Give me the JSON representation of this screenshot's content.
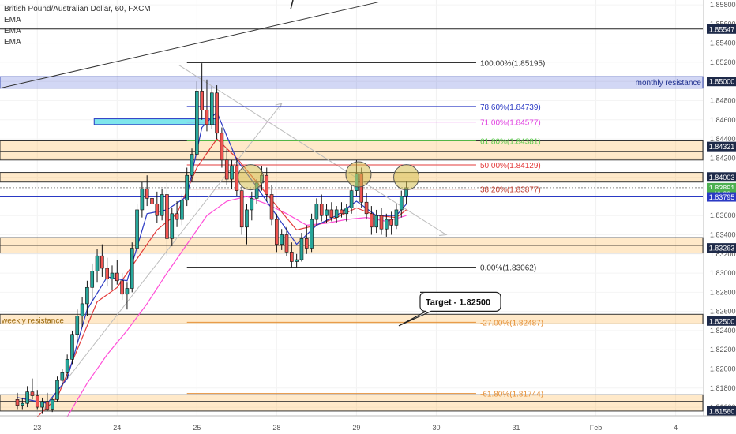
{
  "chart_data": {
    "type": "candlestick",
    "title": "British Pound/Australian Dollar, 60, FXCM",
    "indicators": [
      "EMA",
      "EMA",
      "EMA"
    ],
    "y_range": [
      1.8151,
      1.8585
    ],
    "price_ticks": [
      "1.85800",
      "1.85600",
      "1.85400",
      "1.85200",
      "1.85000",
      "1.84800",
      "1.84600",
      "1.84400",
      "1.84200",
      "1.84000",
      "1.83800",
      "1.83600",
      "1.83400",
      "1.83200",
      "1.83000",
      "1.82800",
      "1.82600",
      "1.82400",
      "1.82200",
      "1.82000",
      "1.81800",
      "1.81600"
    ],
    "x_labels": [
      {
        "label": "23",
        "x": 0.2
      },
      {
        "label": "24",
        "x": 1.0
      },
      {
        "label": "25",
        "x": 1.8
      },
      {
        "label": "28",
        "x": 2.6
      },
      {
        "label": "29",
        "x": 3.4
      },
      {
        "label": "30",
        "x": 4.2
      },
      {
        "label": "31",
        "x": 5.0
      },
      {
        "label": "Feb",
        "x": 5.8
      },
      {
        "label": "4",
        "x": 6.6
      }
    ],
    "price_tags": [
      {
        "label": "1.85547",
        "value": 1.85547,
        "style": "dark"
      },
      {
        "label": "1.85000",
        "value": 1.85,
        "style": "dark"
      },
      {
        "label": "1.84321",
        "value": 1.84321,
        "style": "dark"
      },
      {
        "label": "1.84003",
        "value": 1.84003,
        "style": "dark"
      },
      {
        "label": "1.83891",
        "value": 1.83891,
        "style": "green"
      },
      {
        "label": "46:39",
        "value": 1.8383,
        "style": "green"
      },
      {
        "label": "1.83795",
        "value": 1.83795,
        "style": "blue"
      },
      {
        "label": "1.83263",
        "value": 1.83263,
        "style": "dark"
      },
      {
        "label": "1.82500",
        "value": 1.825,
        "style": "dark"
      },
      {
        "label": "1.81560",
        "value": 1.8156,
        "style": "dark"
      }
    ],
    "zones": [
      {
        "from": 1.8493,
        "to": 1.8505,
        "label": "monthly resistance",
        "style": "blue"
      },
      {
        "from": 1.8427,
        "to": 1.8438,
        "label": "",
        "style": "orange"
      },
      {
        "from": 1.8418,
        "to": 1.8427,
        "label": "",
        "style": "orange"
      },
      {
        "from": 1.8395,
        "to": 1.8405,
        "label": "",
        "style": "orange"
      },
      {
        "from": 1.8329,
        "to": 1.8337,
        "label": "",
        "style": "orange"
      },
      {
        "from": 1.8321,
        "to": 1.8329,
        "label": "",
        "style": "orange"
      },
      {
        "from": 1.8247,
        "to": 1.8257,
        "label": "weekly resistance",
        "style": "orange"
      },
      {
        "from": 1.8166,
        "to": 1.8173,
        "label": "",
        "style": "orange"
      },
      {
        "from": 1.8156,
        "to": 1.8166,
        "label": "",
        "style": "orange"
      }
    ],
    "fib_levels": [
      {
        "label": "100.00%(1.85195)",
        "value": 1.85195,
        "color": "#333333"
      },
      {
        "label": "78.60%(1.84739)",
        "value": 1.84739,
        "color": "#2a39c4"
      },
      {
        "label": "71.00%(1.84577)",
        "value": 1.84577,
        "color": "#e040e0"
      },
      {
        "label": "61.80%(1.84381)",
        "value": 1.84381,
        "color": "#5ac94a"
      },
      {
        "label": "50.00%(1.84129)",
        "value": 1.84129,
        "color": "#e33b3b"
      },
      {
        "label": "38.20%(1.83877)",
        "value": 1.83877,
        "color": "#c0392b"
      },
      {
        "label": "0.00%(1.83062)",
        "value": 1.83062,
        "color": "#333333"
      },
      {
        "label": "-27.00%(1.82487)",
        "value": 1.82487,
        "color": "#e69138"
      },
      {
        "label": "-61.80%(1.81744)",
        "value": 1.81744,
        "color": "#e69138"
      }
    ],
    "annotation": {
      "label": "Target - 1.82500"
    },
    "colors": {
      "up": "#26a69a",
      "down": "#ef5350",
      "ema_fast": "#2a39c4",
      "ema_mid": "#e33b3b",
      "ema_slow": "#ff4fd8"
    },
    "candles": [
      {
        "t": 0.0,
        "o": 1.8168,
        "h": 1.8175,
        "l": 1.8158,
        "c": 1.8162
      },
      {
        "t": 0.05,
        "o": 1.8162,
        "h": 1.817,
        "l": 1.8158,
        "c": 1.8164
      },
      {
        "t": 0.1,
        "o": 1.8164,
        "h": 1.8182,
        "l": 1.816,
        "c": 1.8176
      },
      {
        "t": 0.15,
        "o": 1.8176,
        "h": 1.819,
        "l": 1.8168,
        "c": 1.8172
      },
      {
        "t": 0.2,
        "o": 1.8172,
        "h": 1.8178,
        "l": 1.8158,
        "c": 1.816
      },
      {
        "t": 0.25,
        "o": 1.816,
        "h": 1.817,
        "l": 1.8153,
        "c": 1.8166
      },
      {
        "t": 0.3,
        "o": 1.8166,
        "h": 1.8175,
        "l": 1.8156,
        "c": 1.8158
      },
      {
        "t": 0.35,
        "o": 1.8158,
        "h": 1.817,
        "l": 1.8155,
        "c": 1.8168
      },
      {
        "t": 0.4,
        "o": 1.8168,
        "h": 1.8192,
        "l": 1.8166,
        "c": 1.8188
      },
      {
        "t": 0.45,
        "o": 1.8188,
        "h": 1.82,
        "l": 1.8182,
        "c": 1.8196
      },
      {
        "t": 0.5,
        "o": 1.8196,
        "h": 1.8215,
        "l": 1.819,
        "c": 1.821
      },
      {
        "t": 0.55,
        "o": 1.821,
        "h": 1.824,
        "l": 1.8205,
        "c": 1.8236
      },
      {
        "t": 0.6,
        "o": 1.8236,
        "h": 1.8262,
        "l": 1.8228,
        "c": 1.8255
      },
      {
        "t": 0.65,
        "o": 1.8255,
        "h": 1.8275,
        "l": 1.8244,
        "c": 1.8268
      },
      {
        "t": 0.7,
        "o": 1.8268,
        "h": 1.8292,
        "l": 1.8255,
        "c": 1.8285
      },
      {
        "t": 0.75,
        "o": 1.8285,
        "h": 1.831,
        "l": 1.8272,
        "c": 1.8302
      },
      {
        "t": 0.8,
        "o": 1.8302,
        "h": 1.8325,
        "l": 1.829,
        "c": 1.8318
      },
      {
        "t": 0.85,
        "o": 1.8318,
        "h": 1.833,
        "l": 1.8296,
        "c": 1.8305
      },
      {
        "t": 0.9,
        "o": 1.8305,
        "h": 1.8316,
        "l": 1.8286,
        "c": 1.8294
      },
      {
        "t": 0.95,
        "o": 1.8294,
        "h": 1.8308,
        "l": 1.8282,
        "c": 1.83
      },
      {
        "t": 1.0,
        "o": 1.83,
        "h": 1.8314,
        "l": 1.8288,
        "c": 1.8292
      },
      {
        "t": 1.05,
        "o": 1.8292,
        "h": 1.83,
        "l": 1.8272,
        "c": 1.8278
      },
      {
        "t": 1.1,
        "o": 1.8278,
        "h": 1.829,
        "l": 1.8262,
        "c": 1.8284
      },
      {
        "t": 1.15,
        "o": 1.8284,
        "h": 1.8332,
        "l": 1.828,
        "c": 1.8326
      },
      {
        "t": 1.2,
        "o": 1.8326,
        "h": 1.8372,
        "l": 1.832,
        "c": 1.8366
      },
      {
        "t": 1.25,
        "o": 1.8366,
        "h": 1.8395,
        "l": 1.8358,
        "c": 1.8388
      },
      {
        "t": 1.3,
        "o": 1.8388,
        "h": 1.8402,
        "l": 1.837,
        "c": 1.8378
      },
      {
        "t": 1.35,
        "o": 1.8378,
        "h": 1.84,
        "l": 1.8365,
        "c": 1.8372
      },
      {
        "t": 1.4,
        "o": 1.8372,
        "h": 1.8385,
        "l": 1.8352,
        "c": 1.836
      },
      {
        "t": 1.45,
        "o": 1.836,
        "h": 1.8388,
        "l": 1.8355,
        "c": 1.8382
      },
      {
        "t": 1.5,
        "o": 1.8382,
        "h": 1.8394,
        "l": 1.8318,
        "c": 1.8336
      },
      {
        "t": 1.55,
        "o": 1.8336,
        "h": 1.8368,
        "l": 1.8328,
        "c": 1.8362
      },
      {
        "t": 1.6,
        "o": 1.8362,
        "h": 1.8375,
        "l": 1.8348,
        "c": 1.8356
      },
      {
        "t": 1.65,
        "o": 1.8356,
        "h": 1.8382,
        "l": 1.835,
        "c": 1.8376
      },
      {
        "t": 1.7,
        "o": 1.8376,
        "h": 1.841,
        "l": 1.837,
        "c": 1.8402
      },
      {
        "t": 1.75,
        "o": 1.8402,
        "h": 1.843,
        "l": 1.8395,
        "c": 1.8424
      },
      {
        "t": 1.8,
        "o": 1.8424,
        "h": 1.85,
        "l": 1.8418,
        "c": 1.849
      },
      {
        "t": 1.85,
        "o": 1.849,
        "h": 1.8519,
        "l": 1.846,
        "c": 1.847
      },
      {
        "t": 1.9,
        "o": 1.847,
        "h": 1.8502,
        "l": 1.8448,
        "c": 1.8455
      },
      {
        "t": 1.95,
        "o": 1.8455,
        "h": 1.8495,
        "l": 1.845,
        "c": 1.8488
      },
      {
        "t": 2.0,
        "o": 1.8488,
        "h": 1.8496,
        "l": 1.844,
        "c": 1.8446
      },
      {
        "t": 2.05,
        "o": 1.8446,
        "h": 1.8452,
        "l": 1.841,
        "c": 1.8418
      },
      {
        "t": 2.1,
        "o": 1.8418,
        "h": 1.843,
        "l": 1.8392,
        "c": 1.8398
      },
      {
        "t": 2.15,
        "o": 1.8398,
        "h": 1.8418,
        "l": 1.8388,
        "c": 1.8412
      },
      {
        "t": 2.2,
        "o": 1.8412,
        "h": 1.842,
        "l": 1.838,
        "c": 1.8386
      },
      {
        "t": 2.25,
        "o": 1.8386,
        "h": 1.8392,
        "l": 1.834,
        "c": 1.8348
      },
      {
        "t": 2.3,
        "o": 1.8348,
        "h": 1.8372,
        "l": 1.833,
        "c": 1.8366
      },
      {
        "t": 2.35,
        "o": 1.8366,
        "h": 1.8385,
        "l": 1.8355,
        "c": 1.8378
      },
      {
        "t": 2.4,
        "o": 1.8378,
        "h": 1.8398,
        "l": 1.8372,
        "c": 1.8394
      },
      {
        "t": 2.45,
        "o": 1.8394,
        "h": 1.8412,
        "l": 1.8386,
        "c": 1.8402
      },
      {
        "t": 2.5,
        "o": 1.8402,
        "h": 1.841,
        "l": 1.8375,
        "c": 1.8382
      },
      {
        "t": 2.55,
        "o": 1.8382,
        "h": 1.8392,
        "l": 1.835,
        "c": 1.8356
      },
      {
        "t": 2.6,
        "o": 1.8356,
        "h": 1.8362,
        "l": 1.8322,
        "c": 1.833
      },
      {
        "t": 2.65,
        "o": 1.833,
        "h": 1.8346,
        "l": 1.8324,
        "c": 1.834
      },
      {
        "t": 2.7,
        "o": 1.834,
        "h": 1.8348,
        "l": 1.8318,
        "c": 1.8322
      },
      {
        "t": 2.75,
        "o": 1.8322,
        "h": 1.8332,
        "l": 1.8306,
        "c": 1.8312
      },
      {
        "t": 2.8,
        "o": 1.8312,
        "h": 1.832,
        "l": 1.8306,
        "c": 1.8314
      },
      {
        "t": 2.85,
        "o": 1.8314,
        "h": 1.8342,
        "l": 1.8312,
        "c": 1.8336
      },
      {
        "t": 2.9,
        "o": 1.8336,
        "h": 1.835,
        "l": 1.832,
        "c": 1.8326
      },
      {
        "t": 2.95,
        "o": 1.8326,
        "h": 1.8362,
        "l": 1.8322,
        "c": 1.8356
      },
      {
        "t": 3.0,
        "o": 1.8356,
        "h": 1.8378,
        "l": 1.835,
        "c": 1.8372
      },
      {
        "t": 3.05,
        "o": 1.8372,
        "h": 1.8382,
        "l": 1.8354,
        "c": 1.836
      },
      {
        "t": 3.1,
        "o": 1.836,
        "h": 1.8372,
        "l": 1.8352,
        "c": 1.8366
      },
      {
        "t": 3.15,
        "o": 1.8366,
        "h": 1.8374,
        "l": 1.8354,
        "c": 1.8358
      },
      {
        "t": 3.2,
        "o": 1.8358,
        "h": 1.837,
        "l": 1.8352,
        "c": 1.8366
      },
      {
        "t": 3.25,
        "o": 1.8366,
        "h": 1.8374,
        "l": 1.8358,
        "c": 1.8362
      },
      {
        "t": 3.3,
        "o": 1.8362,
        "h": 1.8372,
        "l": 1.8354,
        "c": 1.8368
      },
      {
        "t": 3.35,
        "o": 1.8368,
        "h": 1.8392,
        "l": 1.8362,
        "c": 1.8386
      },
      {
        "t": 3.4,
        "o": 1.8386,
        "h": 1.8418,
        "l": 1.838,
        "c": 1.8404
      },
      {
        "t": 3.45,
        "o": 1.8404,
        "h": 1.841,
        "l": 1.8368,
        "c": 1.8374
      },
      {
        "t": 3.5,
        "o": 1.8374,
        "h": 1.8384,
        "l": 1.8356,
        "c": 1.8362
      },
      {
        "t": 3.55,
        "o": 1.8362,
        "h": 1.837,
        "l": 1.834,
        "c": 1.8348
      },
      {
        "t": 3.6,
        "o": 1.8348,
        "h": 1.8366,
        "l": 1.8342,
        "c": 1.836
      },
      {
        "t": 3.65,
        "o": 1.836,
        "h": 1.8368,
        "l": 1.834,
        "c": 1.8346
      },
      {
        "t": 3.7,
        "o": 1.8346,
        "h": 1.8362,
        "l": 1.8338,
        "c": 1.8356
      },
      {
        "t": 3.75,
        "o": 1.8356,
        "h": 1.8364,
        "l": 1.834,
        "c": 1.835
      },
      {
        "t": 3.8,
        "o": 1.835,
        "h": 1.8372,
        "l": 1.8346,
        "c": 1.8366
      },
      {
        "t": 3.85,
        "o": 1.8366,
        "h": 1.8386,
        "l": 1.8358,
        "c": 1.838
      },
      {
        "t": 3.9,
        "o": 1.838,
        "h": 1.8396,
        "l": 1.8372,
        "c": 1.8389
      }
    ],
    "ema": {
      "fast": [
        [
          0.0,
          1.817
        ],
        [
          0.3,
          1.8164
        ],
        [
          0.5,
          1.819
        ],
        [
          0.7,
          1.8262
        ],
        [
          0.9,
          1.8296
        ],
        [
          1.1,
          1.8292
        ],
        [
          1.3,
          1.8362
        ],
        [
          1.5,
          1.8366
        ],
        [
          1.7,
          1.838
        ],
        [
          1.85,
          1.8452
        ],
        [
          2.0,
          1.8468
        ],
        [
          2.2,
          1.8418
        ],
        [
          2.4,
          1.839
        ],
        [
          2.6,
          1.836
        ],
        [
          2.8,
          1.833
        ],
        [
          3.0,
          1.835
        ],
        [
          3.2,
          1.836
        ],
        [
          3.4,
          1.8375
        ],
        [
          3.6,
          1.836
        ],
        [
          3.8,
          1.836
        ],
        [
          3.9,
          1.8372
        ]
      ],
      "mid": [
        [
          0.2,
          1.815
        ],
        [
          0.4,
          1.817
        ],
        [
          0.6,
          1.822
        ],
        [
          0.8,
          1.827
        ],
        [
          1.0,
          1.8285
        ],
        [
          1.2,
          1.8315
        ],
        [
          1.4,
          1.8345
        ],
        [
          1.6,
          1.8362
        ],
        [
          1.8,
          1.841
        ],
        [
          2.0,
          1.844
        ],
        [
          2.2,
          1.842
        ],
        [
          2.4,
          1.8395
        ],
        [
          2.6,
          1.837
        ],
        [
          2.8,
          1.8345
        ],
        [
          3.0,
          1.835
        ],
        [
          3.2,
          1.8358
        ],
        [
          3.4,
          1.8368
        ],
        [
          3.6,
          1.836
        ],
        [
          3.8,
          1.8358
        ],
        [
          3.9,
          1.8366
        ]
      ],
      "slow": [
        [
          0.5,
          1.815
        ],
        [
          0.7,
          1.8185
        ],
        [
          0.9,
          1.8215
        ],
        [
          1.1,
          1.824
        ],
        [
          1.3,
          1.8268
        ],
        [
          1.5,
          1.83
        ],
        [
          1.7,
          1.833
        ],
        [
          1.9,
          1.836
        ],
        [
          2.1,
          1.8375
        ],
        [
          2.3,
          1.838
        ],
        [
          2.5,
          1.8372
        ],
        [
          2.7,
          1.8362
        ],
        [
          2.9,
          1.835
        ],
        [
          3.1,
          1.8352
        ],
        [
          3.3,
          1.8356
        ],
        [
          3.5,
          1.8358
        ],
        [
          3.7,
          1.8354
        ],
        [
          3.9,
          1.836
        ]
      ]
    }
  }
}
